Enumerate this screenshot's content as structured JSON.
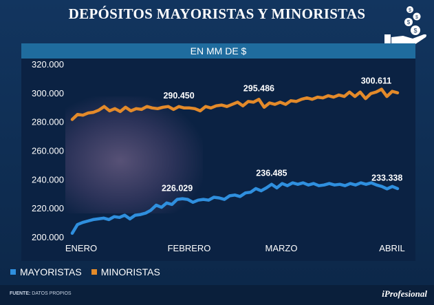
{
  "title": "DEPÓSITOS MAYORISTAS Y MINORISTAS",
  "subtitle": "EN MM DE $",
  "logo": "hand-with-coins-icon",
  "colors": {
    "mayoristas": "#2f8fde",
    "minoristas": "#e38a2a",
    "background": "#0b2243",
    "subtitle_bar": "#1f6c9e"
  },
  "legend": [
    "MAYORISTAS",
    "MINORISTAS"
  ],
  "footer": {
    "source_label": "FUENTE:",
    "source_text": "DATOS PROPIOS",
    "brand": "iProfesional"
  },
  "chart_data": {
    "type": "line",
    "title": "DEPÓSITOS MAYORISTAS Y MINORISTAS",
    "subtitle": "EN MM DE $",
    "ylim": [
      200000,
      320000
    ],
    "y_ticks": [
      "200.000",
      "220.000",
      "240.000",
      "260.000",
      "280.000",
      "300.000",
      "320.000"
    ],
    "x_ticks": [
      "ENERO",
      "FEBRERO",
      "MARZO",
      "ABRIL"
    ],
    "grid": false,
    "legend_position": "bottom-left",
    "series": [
      {
        "name": "MAYORISTAS",
        "values": [
          202500,
          208500,
          210000,
          211000,
          212000,
          212500,
          213000,
          212000,
          214000,
          213500,
          215000,
          212500,
          215000,
          215500,
          216500,
          218500,
          222000,
          220500,
          223500,
          222500,
          226029,
          226500,
          226000,
          224000,
          225500,
          226000,
          225500,
          227500,
          227000,
          226000,
          228500,
          229000,
          228000,
          230500,
          231000,
          233500,
          232000,
          234000,
          236485,
          234000,
          237000,
          235500,
          237500,
          236500,
          237500,
          236000,
          237000,
          235500,
          236000,
          237000,
          236000,
          236500,
          235500,
          237000,
          236000,
          237500,
          236500,
          237500,
          236000,
          235000,
          233338,
          235000,
          233500
        ]
      },
      {
        "name": "MINORISTAS",
        "values": [
          281500,
          285000,
          284500,
          286000,
          286500,
          288000,
          290500,
          287500,
          289000,
          287000,
          290000,
          287500,
          289000,
          288500,
          290500,
          289500,
          289000,
          290000,
          290500,
          288500,
          290450,
          289500,
          289500,
          289000,
          287500,
          290500,
          289500,
          291000,
          291500,
          290500,
          292000,
          293500,
          291000,
          294000,
          293500,
          295486,
          290000,
          293000,
          292000,
          293500,
          292000,
          294500,
          294000,
          295500,
          296500,
          295500,
          297000,
          296500,
          298000,
          297000,
          298500,
          297500,
          300500,
          297500,
          300500,
          296000,
          299500,
          300611,
          302500,
          297500,
          301000,
          300000
        ]
      }
    ],
    "data_labels": [
      {
        "text": "290.450",
        "series": "MINORISTAS",
        "index": 20,
        "value": 290450
      },
      {
        "text": "295.486",
        "series": "MINORISTAS",
        "index": 35,
        "value": 295486
      },
      {
        "text": "300.611",
        "series": "MINORISTAS",
        "index": 57,
        "value": 300611
      },
      {
        "text": "226.029",
        "series": "MAYORISTAS",
        "index": 20,
        "value": 226029
      },
      {
        "text": "236.485",
        "series": "MAYORISTAS",
        "index": 38,
        "value": 236485
      },
      {
        "text": "233.338",
        "series": "MAYORISTAS",
        "index": 60,
        "value": 233338
      }
    ]
  }
}
